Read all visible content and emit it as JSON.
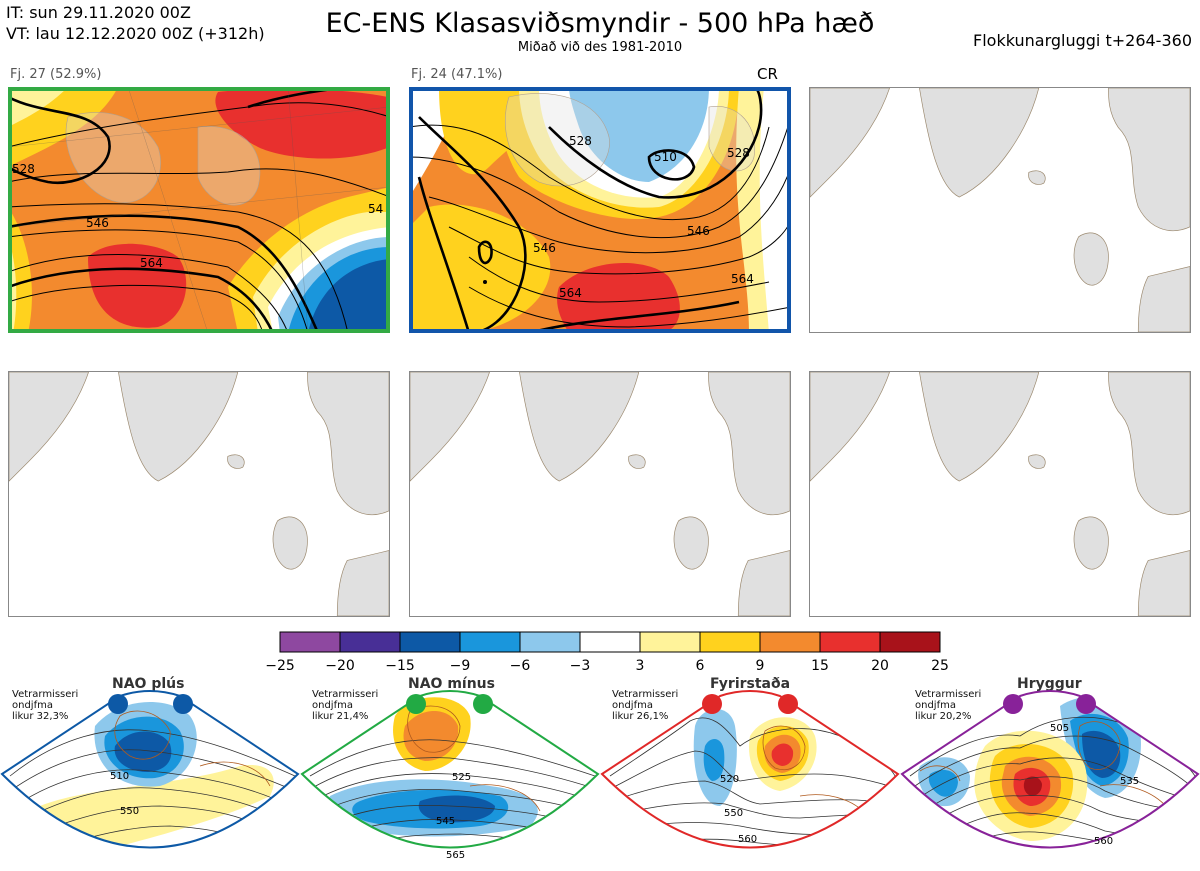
{
  "header": {
    "it_line": "IT: sun 29.11.2020 00Z",
    "vt_line": "VT: lau 12.12.2020 00Z  (+312h)",
    "title": "EC-ENS Klasasviðsmyndir - 500 hPa hæð",
    "subtitle": "Miðað við des 1981-2010",
    "window": "Flokkunargluggi t+264-360"
  },
  "clusters": [
    {
      "label": "Fj. 27 (52.9%)",
      "border_color": "#33aa44",
      "contours": [
        "528",
        "546",
        "564",
        "54"
      ]
    },
    {
      "label": "Fj. 24 (47.1%)",
      "border_color": "#1155aa",
      "tag": "CR",
      "contours": [
        "528",
        "510",
        "528",
        "546",
        "564",
        "546",
        "564"
      ]
    }
  ],
  "colorbar": {
    "ticks": [
      "-25",
      "-20",
      "-15",
      "-9",
      "-6",
      "-3",
      "3",
      "6",
      "9",
      "15",
      "20",
      "25"
    ],
    "colors": [
      "#8e48a0",
      "#482f96",
      "#0d59a6",
      "#1a96dc",
      "#8dc8ec",
      "#ffffff",
      "#fff39a",
      "#ffd21e",
      "#f38a2e",
      "#e8302e",
      "#a8121a"
    ]
  },
  "regimes": [
    {
      "name": "NAO plús",
      "info": [
        "Vetrarmisseri",
        "ondjfma",
        "likur 32,3%"
      ],
      "color": "#0d59a6",
      "contours": [
        "510",
        "550"
      ]
    },
    {
      "name": "NAO mínus",
      "info": [
        "Vetrarmisseri",
        "ondjfma",
        "likur 21,4%"
      ],
      "color": "#22aa44",
      "contours": [
        "525",
        "545",
        "565"
      ]
    },
    {
      "name": "Fyrirstaða",
      "info": [
        "Vetrarmisseri",
        "ondjfma",
        "likur 26,1%"
      ],
      "color": "#e02828",
      "contours": [
        "520",
        "550",
        "560"
      ]
    },
    {
      "name": "Hryggur",
      "info": [
        "Vetrarmisseri",
        "ondjfma",
        "likur 20,2%"
      ],
      "color": "#882299",
      "contours": [
        "505",
        "535",
        "560"
      ]
    }
  ],
  "chart_data": {
    "type": "heatmap",
    "title": "EC-ENS Klasasviðsmyndir - 500 hPa hæð",
    "subtitle": "Miðað við des 1981-2010",
    "colorbar_bounds": [
      -25,
      -20,
      -15,
      -9,
      -6,
      -3,
      3,
      6,
      9,
      15,
      20,
      25
    ],
    "series": [
      {
        "name": "Fj. 27 (52.9%)",
        "probability_percent": 52.9,
        "contour_labels": [
          528,
          546,
          564,
          54
        ]
      },
      {
        "name": "Fj. 24 (47.1%)",
        "probability_percent": 47.1,
        "contour_labels": [
          528,
          510,
          528,
          546,
          564,
          546,
          564
        ]
      }
    ],
    "regimes": [
      {
        "name": "NAO plús",
        "probability_percent": 32.3,
        "contour_labels": [
          510,
          550
        ]
      },
      {
        "name": "NAO mínus",
        "probability_percent": 21.4,
        "contour_labels": [
          525,
          545,
          565
        ]
      },
      {
        "name": "Fyrirstaða",
        "probability_percent": 26.1,
        "contour_labels": [
          520,
          550,
          560
        ]
      },
      {
        "name": "Hryggur",
        "probability_percent": 20.2,
        "contour_labels": [
          505,
          535,
          560
        ]
      }
    ]
  }
}
